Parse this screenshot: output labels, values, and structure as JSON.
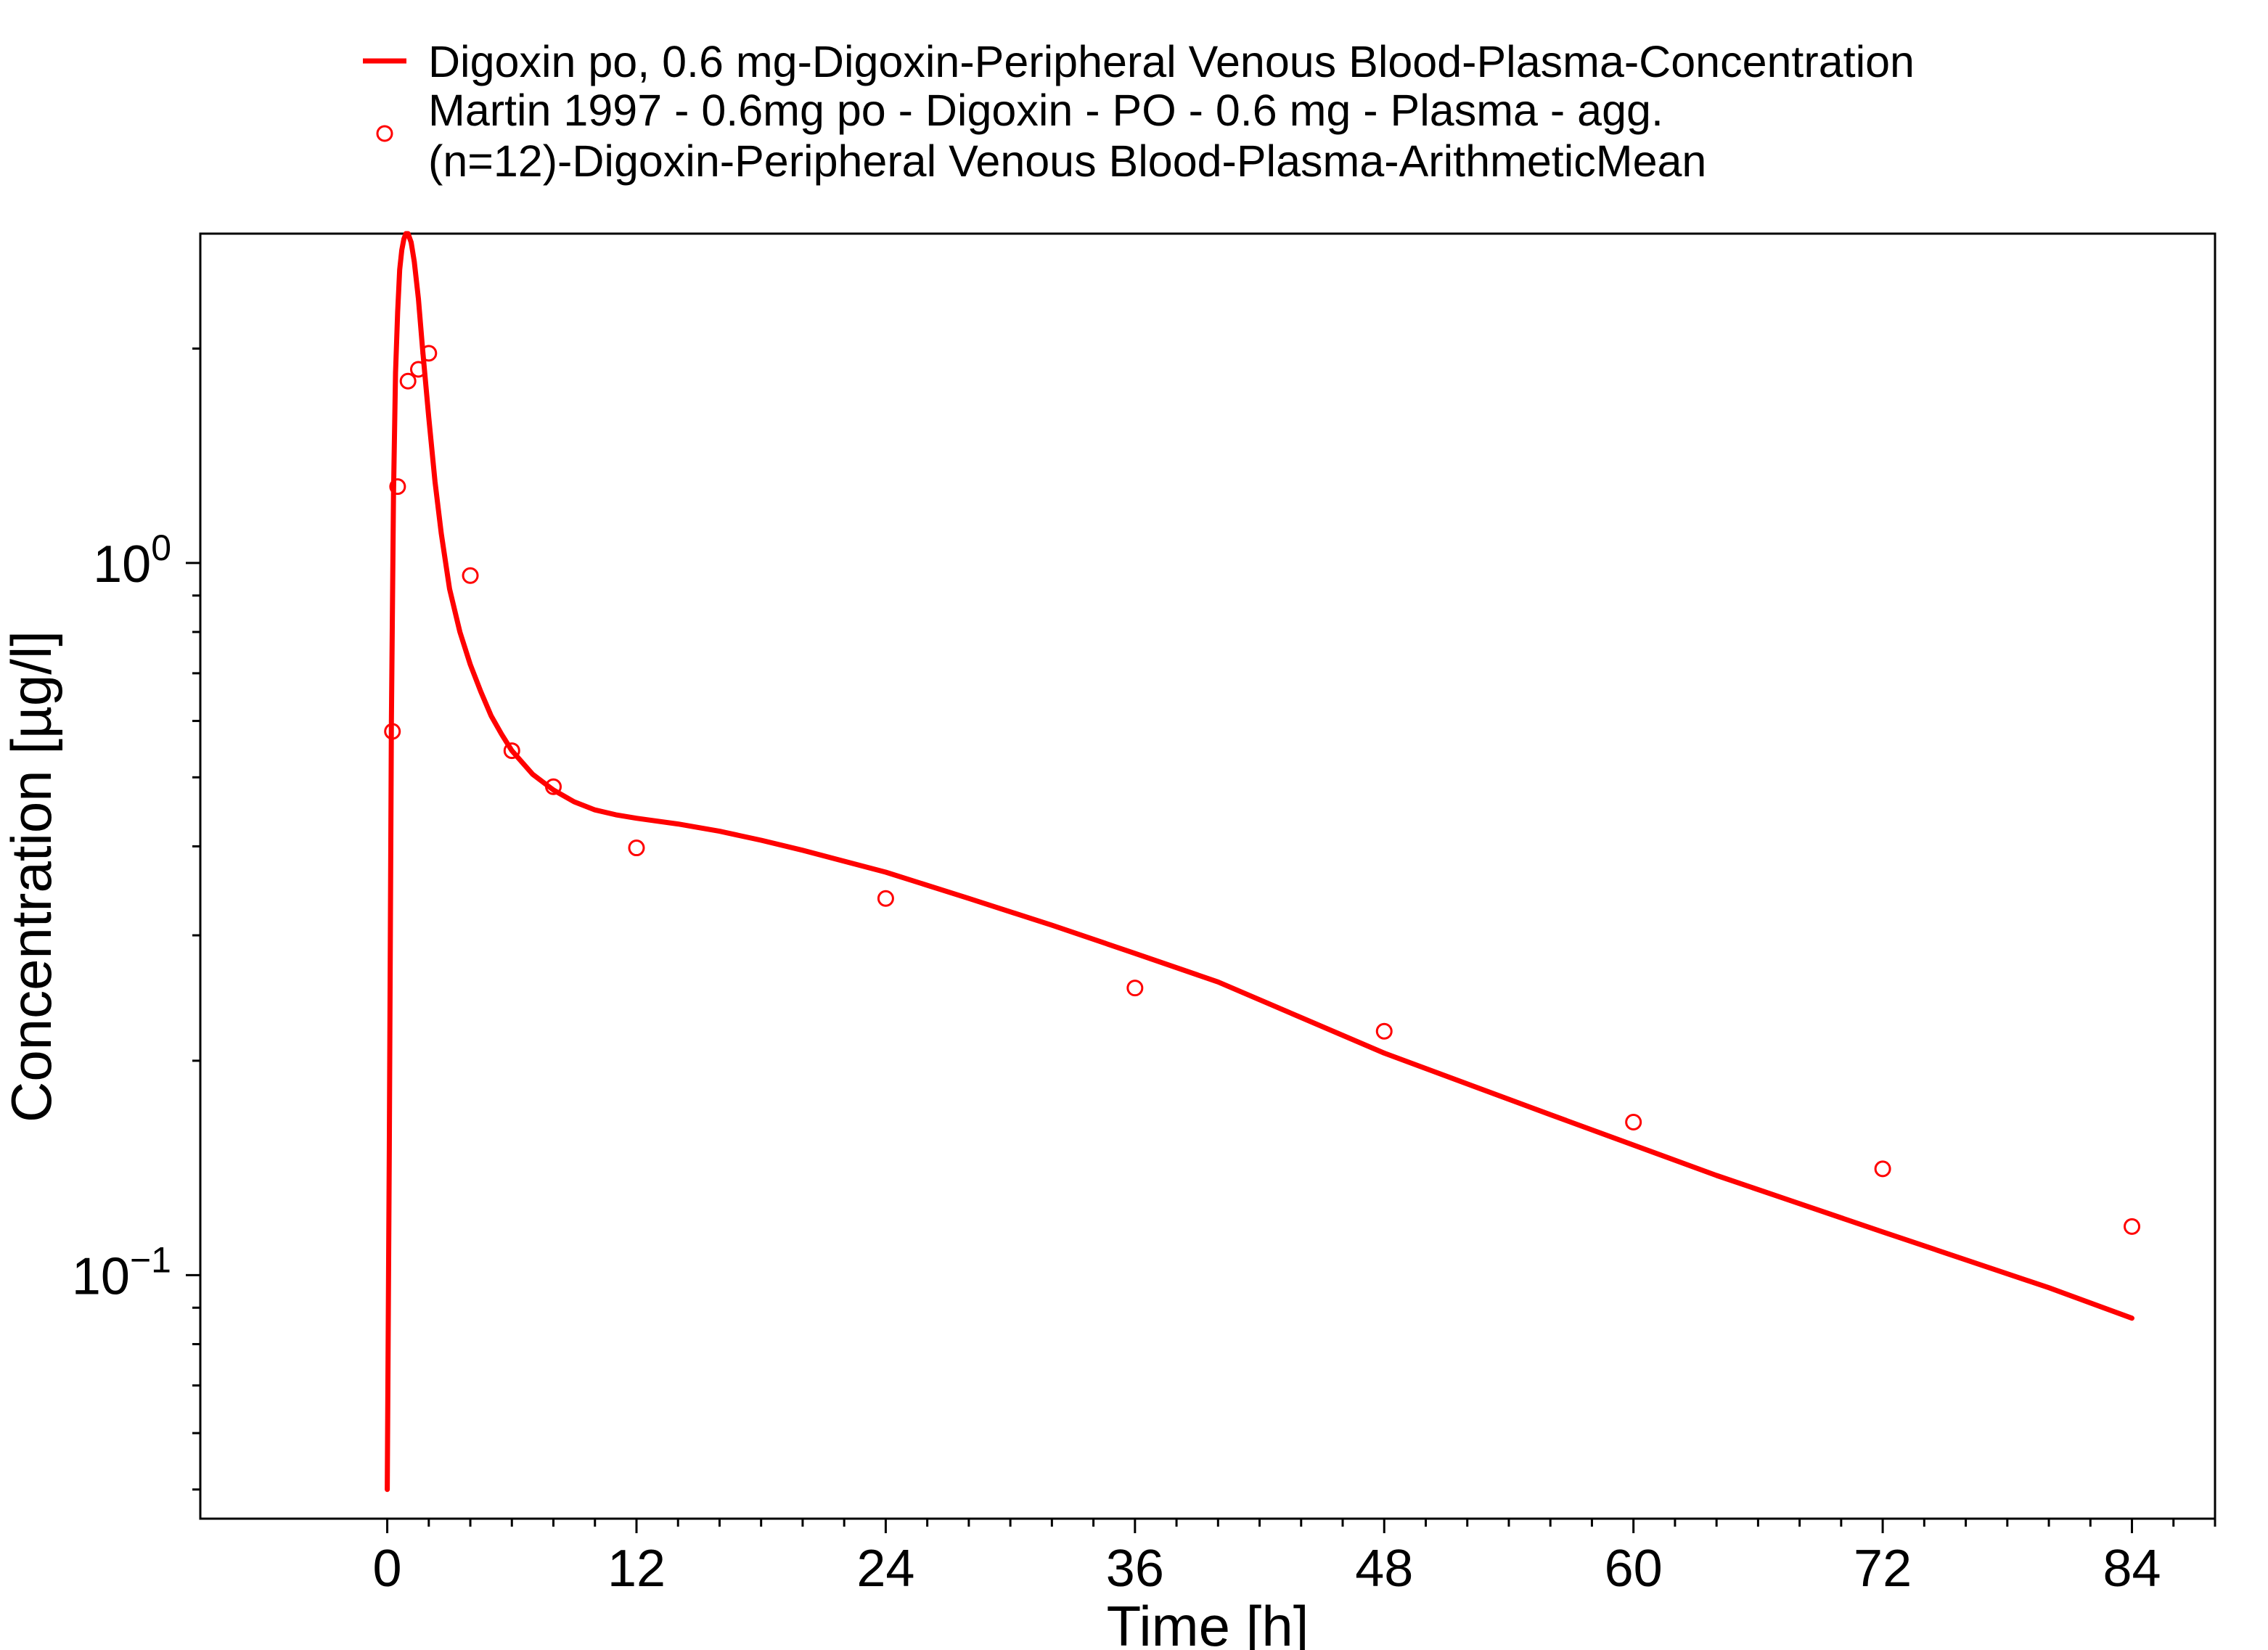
{
  "chart_data": {
    "type": "line",
    "title": "",
    "xlabel": "Time [h]",
    "ylabel": "Concentration [µg/l]",
    "xlim": [
      -9,
      88
    ],
    "ylim": [
      0.0455,
      2.9
    ],
    "y_scale": "log",
    "x_ticks": [
      0,
      12,
      24,
      36,
      48,
      60,
      72,
      84
    ],
    "y_ticks": [
      {
        "value": 1.0,
        "base": "10",
        "exponent": "0"
      },
      {
        "value": 0.1,
        "base": "10",
        "exponent": "−1"
      }
    ],
    "grid": false,
    "legend_position": "top",
    "colors": {
      "simulation": "#ff0000",
      "observed": "#ff0000",
      "axis": "#000000"
    },
    "series": [
      {
        "name": "Digoxin po, 0.6 mg-Digoxin-Peripheral Venous Blood-Plasma-Concentration",
        "style": "line",
        "x": [
          0.0,
          0.1,
          0.2,
          0.3,
          0.4,
          0.5,
          0.6,
          0.7,
          0.8,
          0.9,
          1.0,
          1.15,
          1.3,
          1.5,
          1.7,
          2.0,
          2.3,
          2.6,
          3.0,
          3.5,
          4.0,
          4.5,
          5.0,
          5.5,
          6.0,
          7.0,
          8.0,
          9.0,
          10.0,
          11.0,
          12.0,
          14.0,
          16.0,
          18.0,
          20.0,
          24.0,
          28.0,
          32.0,
          36.0,
          40.0,
          48.0,
          56.0,
          64.0,
          72.0,
          80.0,
          84.0
        ],
        "y": [
          0.05,
          0.15,
          0.6,
          1.25,
          1.85,
          2.25,
          2.58,
          2.75,
          2.85,
          2.9,
          2.9,
          2.82,
          2.65,
          2.35,
          2.0,
          1.6,
          1.3,
          1.1,
          0.92,
          0.8,
          0.72,
          0.66,
          0.61,
          0.575,
          0.545,
          0.505,
          0.48,
          0.462,
          0.45,
          0.443,
          0.438,
          0.43,
          0.42,
          0.408,
          0.395,
          0.368,
          0.338,
          0.31,
          0.283,
          0.258,
          0.205,
          0.168,
          0.138,
          0.115,
          0.096,
          0.087
        ]
      },
      {
        "name": "Martin 1997 - 0.6mg po - Digoxin - PO - 0.6 mg - Plasma - agg. (n=12)-Digoxin-Peripheral Venous Blood-Plasma-ArithmeticMean",
        "name_lines": [
          "Martin 1997 - 0.6mg po - Digoxin - PO - 0.6 mg - Plasma - agg.",
          "(n=12)-Digoxin-Peripheral Venous Blood-Plasma-ArithmeticMean"
        ],
        "style": "scatter",
        "marker": "open-circle",
        "x": [
          0.25,
          0.5,
          1.0,
          1.5,
          2.0,
          4.0,
          6.0,
          8.0,
          12.0,
          24.0,
          36.0,
          48.0,
          60.0,
          72.0,
          84.0
        ],
        "y": [
          0.58,
          1.28,
          1.8,
          1.87,
          1.97,
          0.96,
          0.545,
          0.485,
          0.398,
          0.338,
          0.253,
          0.22,
          0.164,
          0.141,
          0.117
        ]
      }
    ]
  }
}
